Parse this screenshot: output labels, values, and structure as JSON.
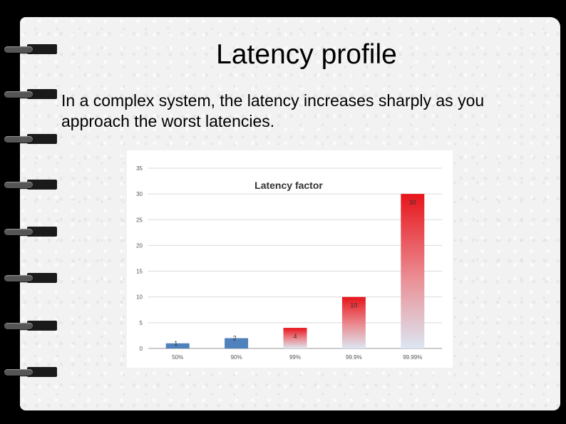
{
  "slide": {
    "title": "Latency profile",
    "body": "In a complex system, the latency increases sharply as you approach the worst latencies."
  },
  "chart_data": {
    "type": "bar",
    "title": "Latency factor",
    "categories": [
      "50%",
      "90%",
      "99%",
      "99.9%",
      "99.99%"
    ],
    "values": [
      1,
      2,
      4,
      10,
      30
    ],
    "data_labels": [
      "1",
      "2",
      "4",
      "10",
      "30"
    ],
    "y_ticks": [
      "0",
      "5",
      "10",
      "15",
      "20",
      "25",
      "30",
      "35"
    ],
    "ylim": [
      0,
      35
    ],
    "grid": true,
    "legend": "none",
    "colors": {
      "low": "#4f81bd",
      "high_top": "#e8141b",
      "high_bottom": "#dce6f2",
      "grid": "#d9d9d9"
    }
  }
}
